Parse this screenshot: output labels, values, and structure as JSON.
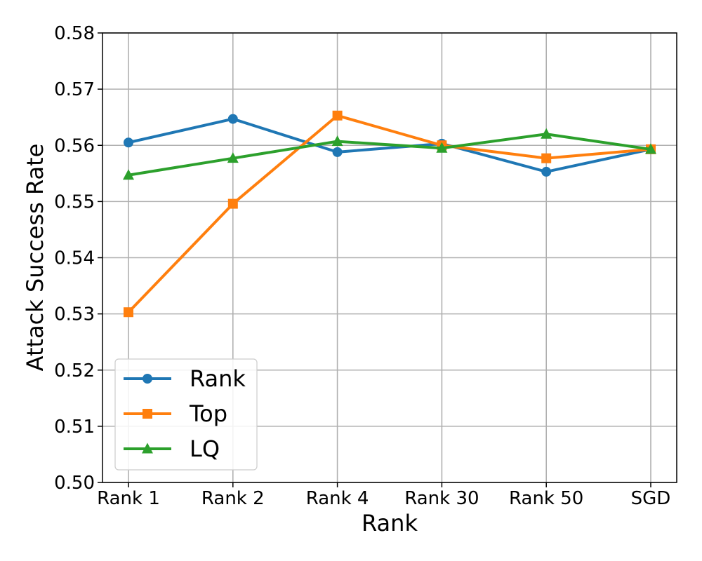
{
  "chart_data": {
    "type": "line",
    "title": "",
    "xlabel": "Rank",
    "ylabel": "Attack Success Rate",
    "categories": [
      "Rank 1",
      "Rank 2",
      "Rank 4",
      "Rank 30",
      "Rank 50",
      "SGD"
    ],
    "ylim": [
      0.5,
      0.58
    ],
    "yticks": [
      "0.50",
      "0.51",
      "0.52",
      "0.53",
      "0.54",
      "0.55",
      "0.56",
      "0.57",
      "0.58"
    ],
    "grid": true,
    "legend_position": "lower-left",
    "series": [
      {
        "name": "Rank",
        "color": "#1f77b4",
        "marker": "circle",
        "values": [
          0.5605,
          0.5647,
          0.5588,
          0.5603,
          0.5553,
          0.5593
        ]
      },
      {
        "name": "Top",
        "color": "#ff7f0e",
        "marker": "square",
        "values": [
          0.5303,
          0.5496,
          0.5653,
          0.56,
          0.5577,
          0.5593
        ]
      },
      {
        "name": "LQ",
        "color": "#2ca02c",
        "marker": "triangle",
        "values": [
          0.5547,
          0.5577,
          0.5607,
          0.5595,
          0.562,
          0.5593
        ]
      }
    ]
  }
}
